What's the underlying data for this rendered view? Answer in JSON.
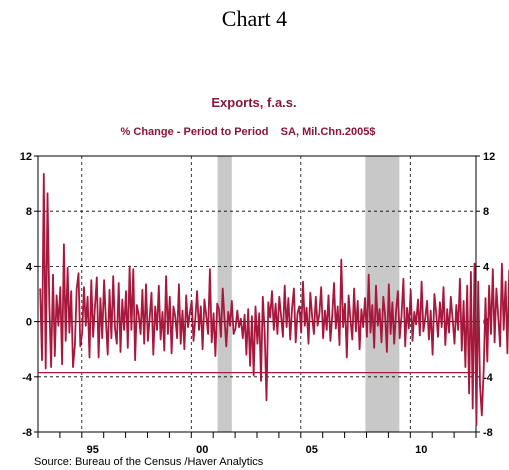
{
  "page": {
    "heading": "Chart 4",
    "source": "Source:  Bureau of the Census /Haver Analytics"
  },
  "chart_data": {
    "type": "line",
    "title": "Exports, f.a.s.",
    "subtitle": "% Change - Period to Period    SA, Mil.Chn.2005$",
    "xlabel": "",
    "ylabel": "",
    "xlim": [
      1993.0,
      2013.0
    ],
    "ylim": [
      -8,
      12
    ],
    "yticks": [
      -8,
      -4,
      0,
      4,
      8,
      12
    ],
    "xticks": [
      {
        "value": 1995,
        "label": "95"
      },
      {
        "value": 2000,
        "label": "00"
      },
      {
        "value": 2005,
        "label": "05"
      },
      {
        "value": 2010,
        "label": "10"
      }
    ],
    "grid": true,
    "legend": "none",
    "recessions": [
      [
        2001.2,
        2001.85
      ],
      [
        2007.95,
        2009.5
      ]
    ],
    "reference_line": -3.7,
    "series": [
      {
        "color": "#a8173c",
        "x_start": 1993.1,
        "x_step": 0.083333,
        "values": [
          2.4,
          -2.8,
          10.7,
          -3.4,
          9.3,
          1.3,
          -3.3,
          3.4,
          -2.5,
          1.9,
          -0.3,
          2.5,
          -3.1,
          5.6,
          -1.4,
          3.9,
          -0.8,
          2.2,
          -3.3,
          -1.7,
          2.4,
          3.5,
          -1.8,
          -0.8,
          2.5,
          -0.3,
          1.8,
          -2.6,
          3.0,
          -1.1,
          1.0,
          3.2,
          -2.6,
          1.7,
          -1.2,
          3.0,
          0.1,
          -2.4,
          2.3,
          -1.2,
          3.3,
          -0.5,
          -1.6,
          2.8,
          -2.2,
          1.6,
          -0.6,
          2.2,
          -1.9,
          4.0,
          -0.6,
          3.8,
          -2.8,
          1.2,
          0.5,
          -0.9,
          2.3,
          -1.6,
          2.7,
          -1.4,
          0.3,
          2.1,
          -2.4,
          1.1,
          -0.6,
          2.6,
          -1.3,
          0.7,
          -2.1,
          3.3,
          -0.9,
          1.8,
          -2.3,
          1.1,
          0.4,
          -1.2,
          2.7,
          -1.6,
          0.8,
          -2.0,
          1.9,
          -0.4,
          0.6,
          1.5,
          -1.4,
          0.2,
          2.2,
          -0.6,
          1.1,
          -2.0,
          1.6,
          0.4,
          -0.9,
          3.8,
          -1.5,
          0.6,
          -2.5,
          1.3,
          0.9,
          -1.1,
          2.4,
          0.2,
          -1.8,
          0.7,
          -0.3,
          1.5,
          -0.9,
          -0.5,
          0.8,
          -0.4,
          0.2,
          -1.2,
          0.5,
          -2.4,
          0.9,
          -3.2,
          0.4,
          -3.9,
          1.1,
          -1.6,
          0.6,
          -4.3,
          1.8,
          -0.8,
          -5.7,
          1.4,
          0.3,
          2.2,
          -0.6,
          1.3,
          -0.9,
          1.8,
          0.4,
          -1.1,
          2.6,
          -0.4,
          1.7,
          -1.3,
          0.9,
          2.4,
          -1.5,
          0.6,
          1.1,
          -0.8,
          2.9,
          -0.3,
          1.0,
          -1.6,
          2.1,
          0.4,
          -0.9,
          1.8,
          -0.3,
          0.6,
          2.5,
          -1.2,
          0.8,
          -0.6,
          1.9,
          -1.4,
          0.4,
          2.8,
          -0.5,
          1.1,
          -1.7,
          4.5,
          -0.4,
          1.3,
          -2.6,
          1.9,
          0.2,
          -1.3,
          2.4,
          -0.7,
          1.5,
          -2.0,
          0.9,
          -0.4,
          1.7,
          -1.1,
          3.4,
          -0.8,
          1.2,
          -1.9,
          2.6,
          -0.3,
          0.9,
          -1.5,
          1.8,
          0.5,
          -2.2,
          2.7,
          -0.9,
          1.4,
          -1.6,
          0.8,
          2.2,
          -1.2,
          0.4,
          3.1,
          -1.8,
          1.0,
          -0.5,
          2.3,
          -1.4,
          0.7,
          -0.2,
          1.6,
          -1.0,
          2.9,
          -0.7,
          0.3,
          1.5,
          -1.3,
          0.8,
          -2.4,
          2.0,
          0.6,
          -1.1,
          1.4,
          -0.4,
          2.5,
          -1.7,
          0.9,
          -0.8,
          1.8,
          0.2,
          -1.6,
          1.2,
          -0.6,
          3.1,
          -2.1,
          1.5,
          -3.3,
          2.6,
          -5.2,
          3.6,
          -6.3,
          4.2,
          -7.5,
          2.9,
          -4.6,
          -6.8,
          -3.5,
          1.7,
          -2.9,
          2.6,
          -0.9,
          3.8,
          -1.5,
          2.4,
          0.3,
          -1.8,
          4.2,
          -0.6,
          2.9,
          -2.3,
          3.7,
          -0.5,
          1.8,
          4.2,
          -1.4,
          2.3,
          0.6,
          -1.9,
          2.8,
          -0.8,
          1.6,
          -2.6,
          2.2,
          -1.1,
          2.1,
          -3.5,
          -3.7
        ]
      }
    ]
  }
}
